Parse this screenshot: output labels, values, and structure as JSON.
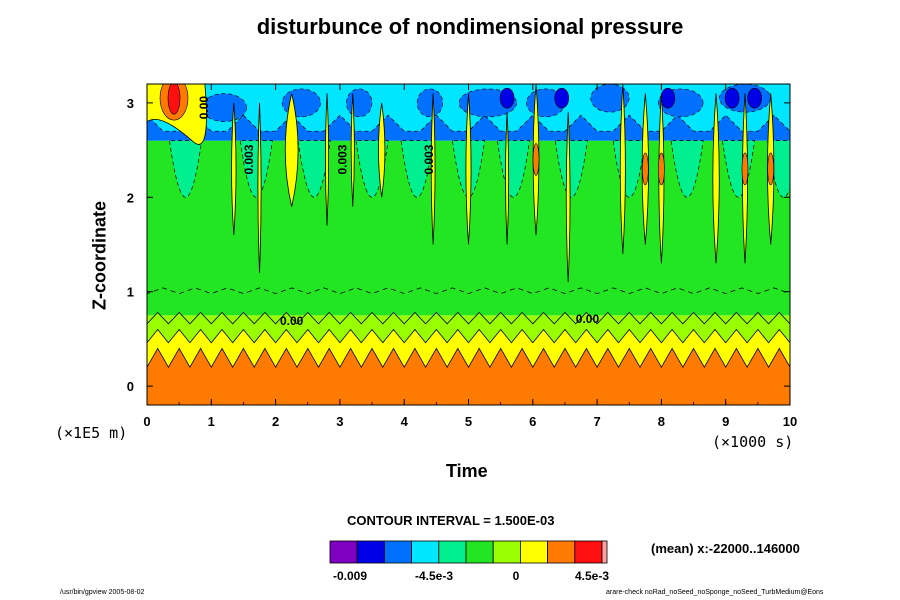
{
  "chart_data": {
    "type": "heatmap",
    "title": "disturbunce of nondimensional pressure",
    "xlabel": "Time",
    "ylabel": "Z-coordinate",
    "x_unit": "(×1000 s)",
    "y_unit": "(×1E5 m)",
    "xlim": [
      0,
      10
    ],
    "ylim": [
      -0.2,
      3.2
    ],
    "x_ticks": [
      "0",
      "1",
      "2",
      "3",
      "4",
      "5",
      "6",
      "7",
      "8",
      "9",
      "10"
    ],
    "y_ticks": [
      "0",
      "1",
      "2",
      "3"
    ],
    "contour_interval": "CONTOUR INTERVAL = 1.500E-03",
    "contour_labels": [
      {
        "text": "0.00",
        "x": 2.25,
        "y": 0.65
      },
      {
        "text": "0.00",
        "x": 6.85,
        "y": 0.67
      },
      {
        "text": "0.00",
        "x": 0.95,
        "y": 2.95
      },
      {
        "text": "0.003",
        "x": 1.65,
        "y": 2.4
      },
      {
        "text": "0.003",
        "x": 3.1,
        "y": 2.4
      },
      {
        "text": "0.003",
        "x": 4.45,
        "y": 2.4
      }
    ],
    "colorbar": {
      "tick_labels": [
        "-0.009",
        "-4.5e-3",
        "0",
        "4.5e-3"
      ],
      "colors": [
        "#7f00c0",
        "#0000e6",
        "#0070ff",
        "#00e6ff",
        "#00f090",
        "#22e622",
        "#99ff00",
        "#ffff00",
        "#ff7a00",
        "#ff1010",
        "#ffa0a0"
      ]
    },
    "bands_by_height": [
      {
        "z_range": [
          -0.2,
          0.3
        ],
        "level": "positive-high",
        "color": "#ff7a00"
      },
      {
        "z_range": [
          0.3,
          0.55
        ],
        "level": "positive-low",
        "color": "#ffff00"
      },
      {
        "z_range": [
          0.55,
          0.75
        ],
        "level": "near-zero",
        "color": "#99ff00"
      },
      {
        "z_range": [
          0.75,
          2.6
        ],
        "level": "slightly-negative",
        "color": "#22e622"
      },
      {
        "z_range": [
          2.6,
          3.2
        ],
        "level": "negative",
        "color": "#0070ff"
      }
    ]
  },
  "footer": {
    "left": "/usr/bin/gpview 2005-08-02",
    "right": "arare-check noRad_noSeed_noSponge_noSeed_TurbMedium@Eons"
  },
  "mean_note": "(mean) x:-22000..146000"
}
